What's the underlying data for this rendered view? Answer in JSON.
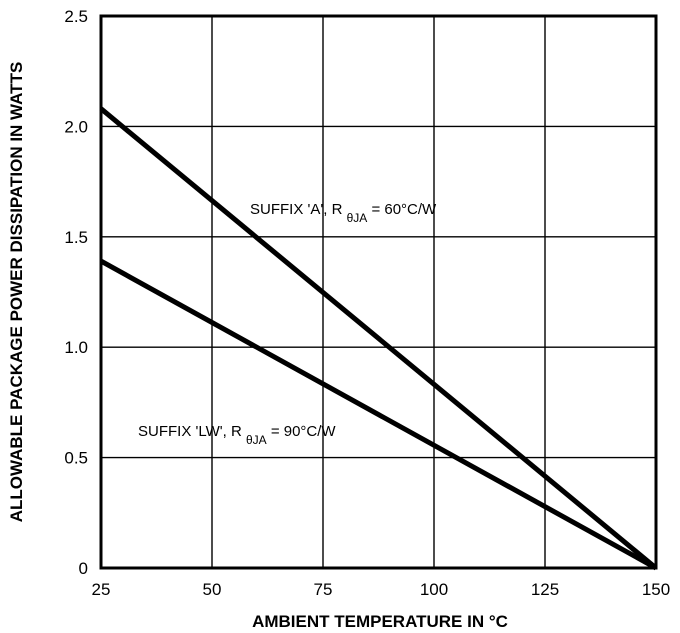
{
  "chart_data": {
    "type": "line",
    "title": "",
    "xlabel": "AMBIENT TEMPERATURE IN °C",
    "ylabel": "ALLOWABLE PACKAGE POWER DISSIPATION IN WATTS",
    "xlim": [
      25,
      150
    ],
    "ylim": [
      0,
      2.5
    ],
    "x_ticks": [
      "25",
      "50",
      "75",
      "100",
      "125",
      "150"
    ],
    "y_ticks": [
      "0",
      "0.5",
      "1.0",
      "1.5",
      "2.0",
      "2.5"
    ],
    "grid": true,
    "legend": "none",
    "series": [
      {
        "x": [
          25,
          150
        ],
        "values": [
          2.08,
          0
        ],
        "label_parts": [
          "SUFFIX 'A', R ",
          "θJA",
          " = 60°C/W"
        ]
      },
      {
        "x": [
          25,
          150
        ],
        "values": [
          1.39,
          0
        ],
        "label_parts": [
          "SUFFIX 'LW', R ",
          "θJA",
          " = 90°C/W"
        ]
      }
    ],
    "line_color": "#000000"
  }
}
